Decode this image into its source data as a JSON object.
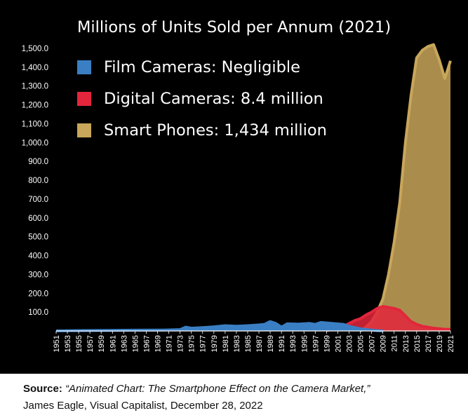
{
  "chart_data": {
    "type": "area",
    "title": "Millions of Units Sold per Annum (2021)",
    "xlabel": "",
    "ylabel": "",
    "ylim": [
      0,
      1500
    ],
    "xlim": [
      1951,
      2021
    ],
    "y_ticks": [
      "1,500.0",
      "1,400.0",
      "1,300.0",
      "1,200.0",
      "1,100.0",
      "1,000.0",
      "900.0",
      "800.0",
      "700.0",
      "600.0",
      "500.0",
      "400.0",
      "300.0",
      "200.0",
      "100.0"
    ],
    "x_ticks": [
      "1951",
      "1953",
      "1955",
      "1957",
      "1959",
      "1961",
      "1963",
      "1965",
      "1967",
      "1969",
      "1971",
      "1973",
      "1975",
      "1977",
      "1979",
      "1981",
      "1983",
      "1985",
      "1987",
      "1989",
      "1991",
      "1993",
      "1995",
      "1997",
      "1999",
      "2001",
      "2003",
      "2005",
      "2007",
      "2009",
      "2011",
      "2013",
      "2015",
      "2017",
      "2019",
      "2021"
    ],
    "legend_position": "top-left",
    "series": [
      {
        "name": "Film Cameras: Negligible",
        "color": "#3a7fc4",
        "points": [
          [
            1951,
            0.5
          ],
          [
            1955,
            2
          ],
          [
            1960,
            3
          ],
          [
            1965,
            4
          ],
          [
            1970,
            5
          ],
          [
            1973,
            7
          ],
          [
            1974,
            20
          ],
          [
            1975,
            15
          ],
          [
            1977,
            18
          ],
          [
            1979,
            22
          ],
          [
            1981,
            28
          ],
          [
            1983,
            25
          ],
          [
            1985,
            28
          ],
          [
            1987,
            32
          ],
          [
            1988,
            35
          ],
          [
            1989,
            50
          ],
          [
            1990,
            40
          ],
          [
            1991,
            20
          ],
          [
            1992,
            38
          ],
          [
            1994,
            36
          ],
          [
            1996,
            40
          ],
          [
            1997,
            35
          ],
          [
            1998,
            45
          ],
          [
            2000,
            40
          ],
          [
            2002,
            35
          ],
          [
            2003,
            25
          ],
          [
            2004,
            18
          ],
          [
            2005,
            12
          ],
          [
            2006,
            8
          ],
          [
            2007,
            5
          ],
          [
            2008,
            2
          ],
          [
            2009,
            0
          ]
        ]
      },
      {
        "name": "Digital Cameras: 8.4 million",
        "color": "#e3263c",
        "points": [
          [
            1999,
            2
          ],
          [
            2000,
            8
          ],
          [
            2001,
            15
          ],
          [
            2002,
            25
          ],
          [
            2003,
            40
          ],
          [
            2004,
            55
          ],
          [
            2005,
            65
          ],
          [
            2006,
            85
          ],
          [
            2007,
            100
          ],
          [
            2008,
            120
          ],
          [
            2009,
            130
          ],
          [
            2010,
            125
          ],
          [
            2011,
            120
          ],
          [
            2012,
            110
          ],
          [
            2013,
            80
          ],
          [
            2014,
            50
          ],
          [
            2015,
            35
          ],
          [
            2016,
            25
          ],
          [
            2017,
            20
          ],
          [
            2018,
            15
          ],
          [
            2019,
            12
          ],
          [
            2020,
            9
          ],
          [
            2021,
            8.4
          ]
        ]
      },
      {
        "name": "Smart Phones: 1,434 million",
        "color": "#c8a65a",
        "points": [
          [
            2005,
            0
          ],
          [
            2006,
            20
          ],
          [
            2007,
            50
          ],
          [
            2008,
            100
          ],
          [
            2009,
            170
          ],
          [
            2010,
            300
          ],
          [
            2011,
            470
          ],
          [
            2012,
            680
          ],
          [
            2013,
            1000
          ],
          [
            2014,
            1250
          ],
          [
            2015,
            1450
          ],
          [
            2016,
            1490
          ],
          [
            2017,
            1510
          ],
          [
            2018,
            1520
          ],
          [
            2019,
            1440
          ],
          [
            2020,
            1340
          ],
          [
            2021,
            1434
          ]
        ]
      }
    ]
  },
  "source": {
    "label": "Source:",
    "title": "“Animated Chart: The Smartphone Effect on the Camera Market,”",
    "byline": "James Eagle, Visual Capitalist, December 28, 2022"
  }
}
